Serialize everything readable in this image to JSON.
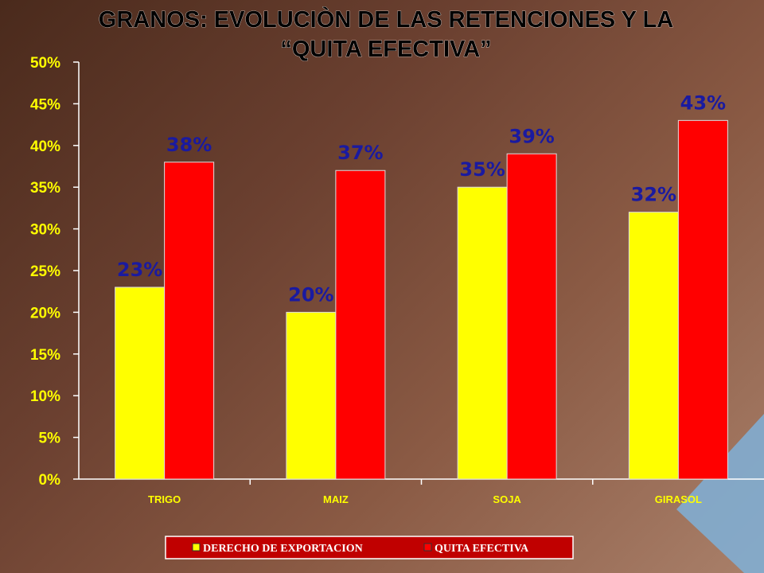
{
  "chart_data": {
    "type": "bar",
    "title": [
      "GRANOS: EVOLUCIÒN DE LAS RETENCIONES Y LA",
      "“QUITA EFECTIVA”"
    ],
    "categories": [
      "TRIGO",
      "MAIZ",
      "SOJA",
      "GIRASOL"
    ],
    "series": [
      {
        "name": "DERECHO DE EXPORTACION",
        "values": [
          23,
          20,
          35,
          32
        ],
        "labels": [
          "23%",
          "20%",
          "35%",
          "32%"
        ],
        "color": "#ffff00"
      },
      {
        "name": "QUITA EFECTIVA",
        "values": [
          38,
          37,
          39,
          43
        ],
        "labels": [
          "38%",
          "37%",
          "39%",
          "43%"
        ],
        "color": "#ff0000"
      }
    ],
    "ylim": [
      0,
      50
    ],
    "yticks": [
      "0%",
      "5%",
      "10%",
      "15%",
      "20%",
      "25%",
      "30%",
      "35%",
      "40%",
      "45%",
      "50%"
    ],
    "tick_color": "#ffff00",
    "data_label_color": "#1a1aa0",
    "legend_placement": "bottom",
    "legend_background": "#c00000",
    "grid": false
  }
}
